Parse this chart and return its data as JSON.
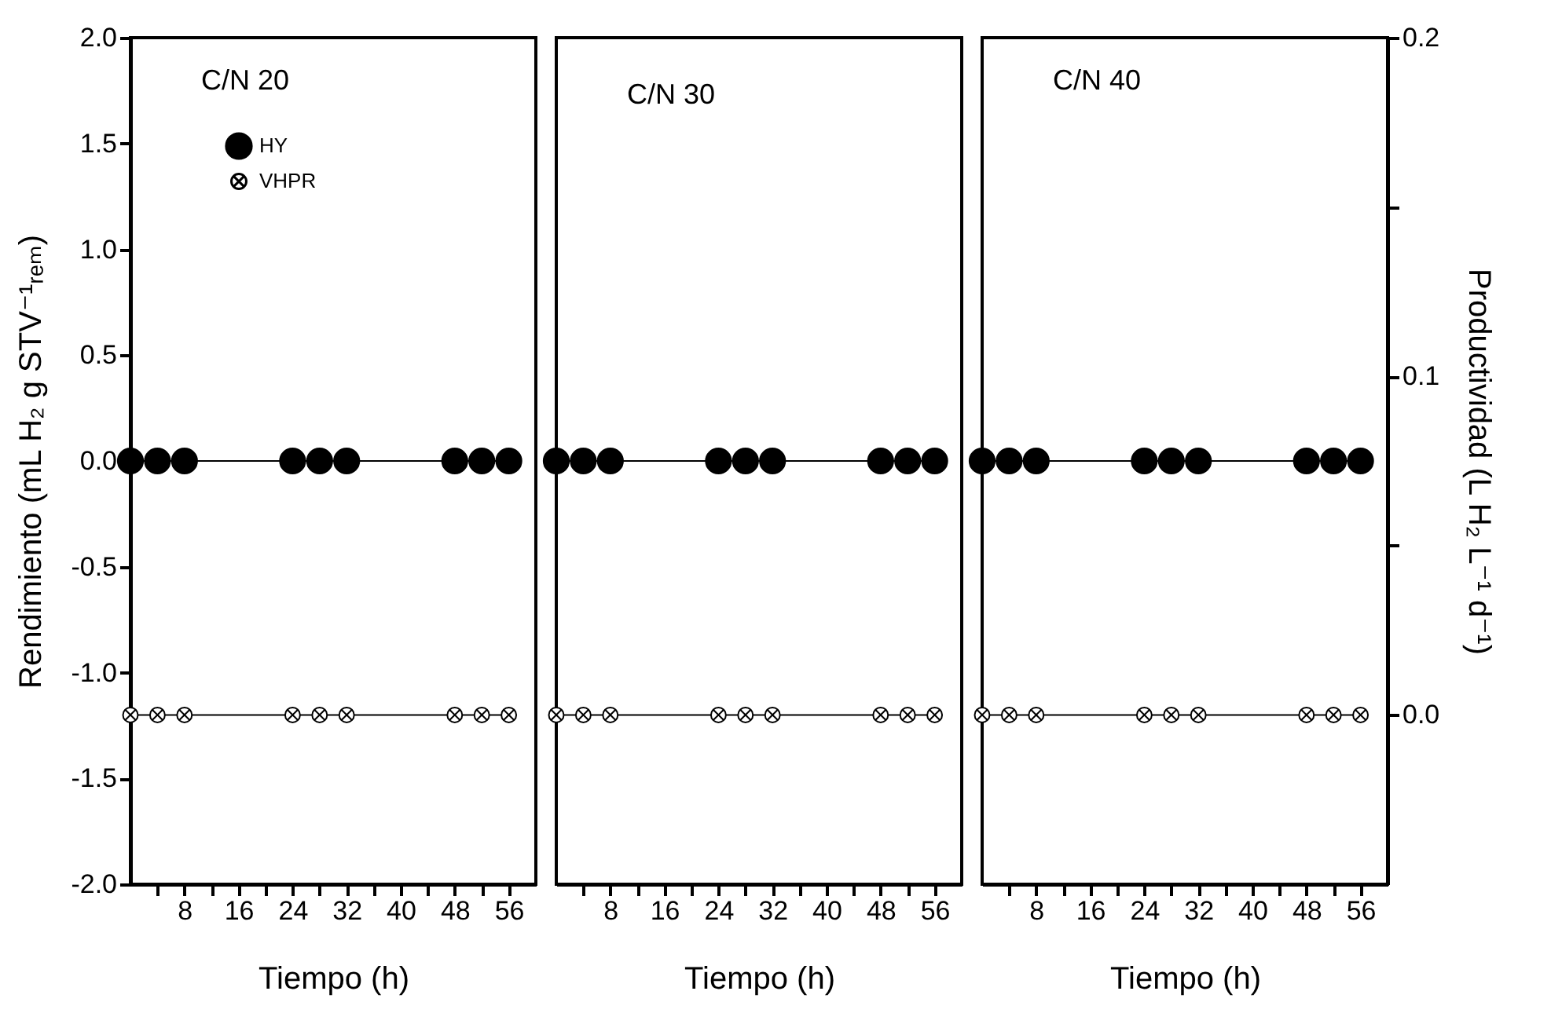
{
  "chart_data": [
    {
      "type": "line",
      "title": "C/N 20",
      "xlabel": "Tiempo (h)",
      "ylabel": "Rendimiento (mL H₂ g STV⁻¹ᵣₑₘ)",
      "x": [
        0,
        4,
        8,
        24,
        28,
        32,
        48,
        52,
        56
      ],
      "xlim": [
        0,
        60
      ],
      "xticks": [
        {
          "value": 4,
          "label": null
        },
        {
          "value": 8,
          "label": "8"
        },
        {
          "value": 12,
          "label": null
        },
        {
          "value": 16,
          "label": "16"
        },
        {
          "value": 20,
          "label": null
        },
        {
          "value": 24,
          "label": "24"
        },
        {
          "value": 28,
          "label": null
        },
        {
          "value": 32,
          "label": "32"
        },
        {
          "value": 36,
          "label": null
        },
        {
          "value": 40,
          "label": "40"
        },
        {
          "value": 44,
          "label": null
        },
        {
          "value": 48,
          "label": "48"
        },
        {
          "value": 52,
          "label": null
        },
        {
          "value": 56,
          "label": "56"
        }
      ],
      "ylim": [
        -2,
        2
      ],
      "yticks": [
        {
          "value": -2,
          "label": "-2.0"
        },
        {
          "value": -1.5,
          "label": "-1.5"
        },
        {
          "value": -1,
          "label": "-1.0"
        },
        {
          "value": -0.5,
          "label": "-0.5"
        },
        {
          "value": 0,
          "label": "0.0"
        },
        {
          "value": 0.5,
          "label": "0.5"
        },
        {
          "value": 1,
          "label": "1.0"
        },
        {
          "value": 1.5,
          "label": "1.5"
        },
        {
          "value": 2,
          "label": "2.0"
        }
      ],
      "y2lim": [
        -0.05,
        0.2
      ],
      "legend": "top left",
      "line_style": "solid",
      "series": [
        {
          "name": "HY",
          "color": "#000000",
          "marker": "circle",
          "values": [
            0,
            0,
            0,
            0,
            0,
            0,
            0,
            0,
            0
          ]
        },
        {
          "name": "VHPR",
          "color": "#000000",
          "marker": "cross",
          "axis": "y2",
          "values": [
            0,
            0,
            0,
            0,
            0,
            0,
            0,
            0,
            0
          ]
        }
      ]
    },
    {
      "type": "line",
      "title": "C/N 30",
      "xlabel": "Tiempo (h)",
      "x": [
        0,
        4,
        8,
        24,
        28,
        32,
        48,
        52,
        56
      ],
      "xlim": [
        0,
        60
      ],
      "xticks": [
        {
          "value": 4,
          "label": null
        },
        {
          "value": 8,
          "label": "8"
        },
        {
          "value": 12,
          "label": null
        },
        {
          "value": 16,
          "label": "16"
        },
        {
          "value": 20,
          "label": null
        },
        {
          "value": 24,
          "label": "24"
        },
        {
          "value": 28,
          "label": null
        },
        {
          "value": 32,
          "label": "32"
        },
        {
          "value": 36,
          "label": null
        },
        {
          "value": 40,
          "label": "40"
        },
        {
          "value": 44,
          "label": null
        },
        {
          "value": 48,
          "label": "48"
        },
        {
          "value": 52,
          "label": null
        },
        {
          "value": 56,
          "label": "56"
        }
      ],
      "ylim": [
        -2,
        2
      ],
      "y2lim": [
        -0.05,
        0.2
      ],
      "tick_labels": "x",
      "line_style": "solid",
      "series": [
        {
          "color": "#000000",
          "marker": "circle",
          "values": [
            0,
            0,
            0,
            0,
            0,
            0,
            0,
            0,
            0
          ]
        },
        {
          "color": "#000000",
          "marker": "cross",
          "axis": "y2",
          "values": [
            0,
            0,
            0,
            0,
            0,
            0,
            0,
            0,
            0
          ]
        }
      ]
    },
    {
      "type": "line",
      "title": "C/N 40",
      "xlabel": "Tiempo (h)",
      "y2label": "Productividad (L H₂ L⁻¹ d⁻¹)",
      "x": [
        0,
        4,
        8,
        24,
        28,
        32,
        48,
        52,
        56
      ],
      "xlim": [
        0,
        60
      ],
      "xticks": [
        {
          "value": 4,
          "label": null
        },
        {
          "value": 8,
          "label": "8"
        },
        {
          "value": 12,
          "label": null
        },
        {
          "value": 16,
          "label": "16"
        },
        {
          "value": 20,
          "label": null
        },
        {
          "value": 24,
          "label": "24"
        },
        {
          "value": 28,
          "label": null
        },
        {
          "value": 32,
          "label": "32"
        },
        {
          "value": 36,
          "label": null
        },
        {
          "value": 40,
          "label": "40"
        },
        {
          "value": 44,
          "label": null
        },
        {
          "value": 48,
          "label": "48"
        },
        {
          "value": 52,
          "label": null
        },
        {
          "value": 56,
          "label": "56"
        }
      ],
      "ylim": [
        -2,
        2
      ],
      "y2lim": [
        -0.05,
        0.2
      ],
      "y2ticks": [
        {
          "value": 0,
          "label": "0.0"
        },
        {
          "value": 0.05,
          "label": null
        },
        {
          "value": 0.1,
          "label": "0.1"
        },
        {
          "value": 0.15,
          "label": null
        },
        {
          "value": 0.2,
          "label": "0.2"
        }
      ],
      "line_style": "solid",
      "series": [
        {
          "color": "#000000",
          "marker": "circle",
          "values": [
            0,
            0,
            0,
            0,
            0,
            0,
            0,
            0,
            0
          ]
        },
        {
          "color": "#000000",
          "marker": "cross",
          "axis": "y2",
          "values": [
            0,
            0,
            0,
            0,
            0,
            0,
            0,
            0,
            0
          ]
        }
      ]
    }
  ]
}
